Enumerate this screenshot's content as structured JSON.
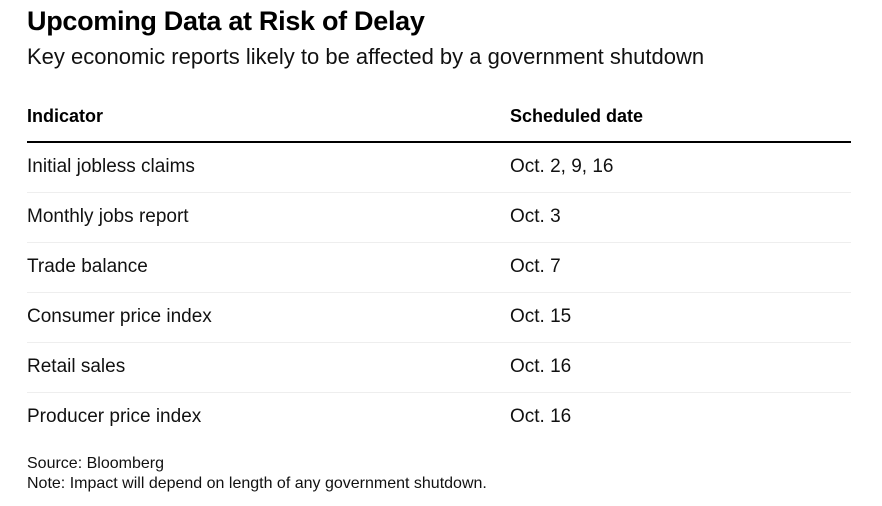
{
  "title": "Upcoming Data at Risk of Delay",
  "subtitle": "Key economic reports likely to be affected by a government shutdown",
  "table": {
    "headers": [
      "Indicator",
      "Scheduled date"
    ],
    "rows": [
      [
        "Initial jobless claims",
        "Oct. 2, 9, 16"
      ],
      [
        "Monthly jobs report",
        "Oct. 3"
      ],
      [
        "Trade balance",
        "Oct. 7"
      ],
      [
        "Consumer price index",
        "Oct. 15"
      ],
      [
        "Retail sales",
        "Oct. 16"
      ],
      [
        "Producer price index",
        "Oct. 16"
      ]
    ]
  },
  "footer": {
    "source": "Source: Bloomberg",
    "note": "Note: Impact will depend on length of any government shutdown."
  }
}
